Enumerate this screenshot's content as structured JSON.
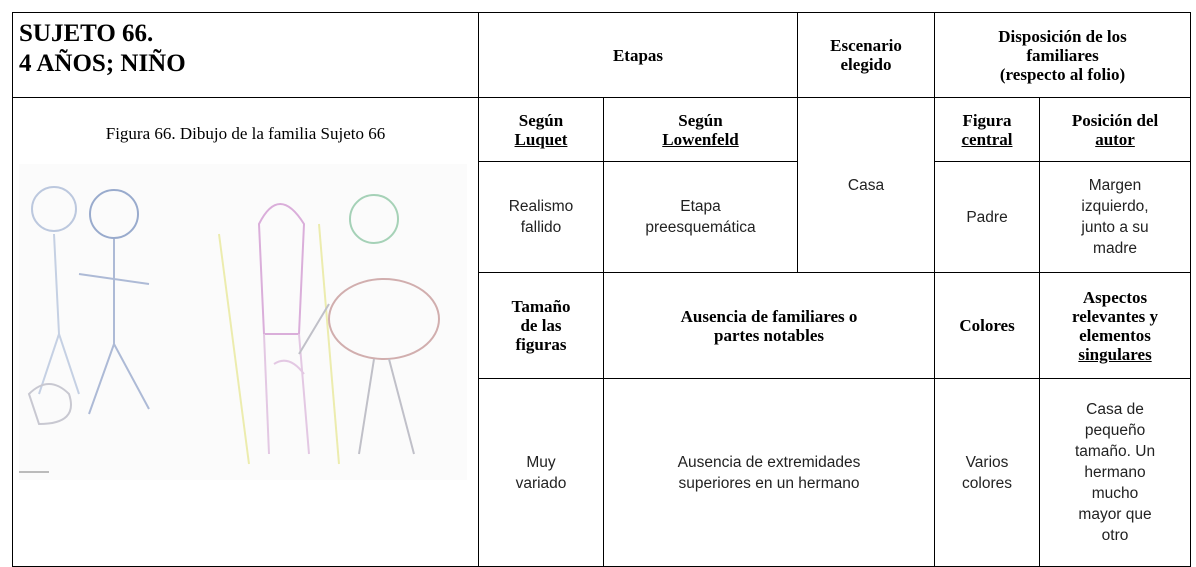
{
  "header": {
    "title": [
      "SUJETO 66.",
      "4 AÑOS; NIÑO"
    ]
  },
  "figure": {
    "caption": "Figura 66. Dibujo de la familia Sujeto 66"
  },
  "table": {
    "headers": {
      "etapas": [
        "Etapas"
      ],
      "escenario": [
        "Escenario",
        "elegido"
      ],
      "disposicion": [
        "Disposición de los",
        "familiares",
        "(respecto al folio)"
      ]
    },
    "subheaders": [
      [
        "Según",
        "Luquet"
      ],
      [
        "Según",
        "Lowenfeld"
      ],
      [
        "Figura",
        "central"
      ],
      [
        "Posición del",
        "autor"
      ]
    ],
    "row1": [
      [
        "Realismo",
        "fallido"
      ],
      [
        "Etapa",
        "preesquemática"
      ],
      [
        "Casa"
      ],
      [
        "Padre"
      ],
      [
        "Margen",
        "izquierdo,",
        "junto a su",
        "madre"
      ]
    ],
    "headers2": [
      [
        "Tamaño",
        "de las",
        "figuras"
      ],
      [
        "Ausencia de familiares o",
        "partes notables"
      ],
      [
        "Colores"
      ],
      [
        "Aspectos",
        "relevantes y",
        "elementos",
        "singulares"
      ]
    ],
    "row2": [
      [
        "Muy",
        "variado"
      ],
      [
        "Ausencia de extremidades",
        "superiores en un hermano"
      ],
      [
        "Varios",
        "colores"
      ],
      [
        "Casa de",
        "pequeño",
        "tamaño. Un",
        "hermano",
        "mucho",
        "mayor que",
        "otro"
      ]
    ]
  }
}
